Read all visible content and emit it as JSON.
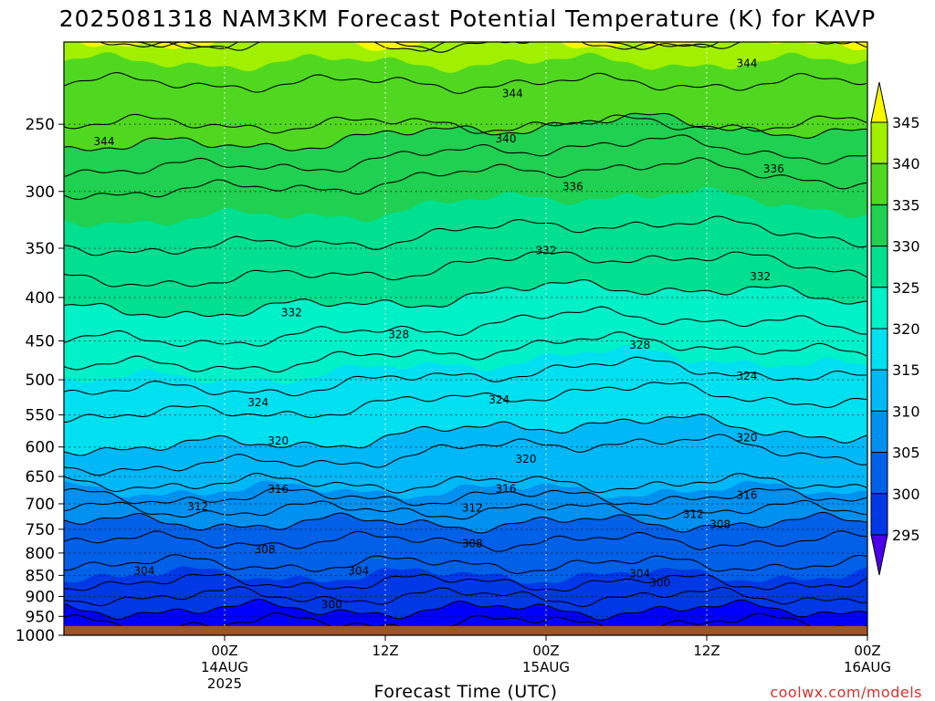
{
  "chart_data": {
    "type": "heatmap",
    "title": "2025081318 NAM3KM Forecast Potential Temperature (K) for KAVP",
    "xlabel": "Forecast Time (UTC)",
    "ylabel": "",
    "y_axis": {
      "scale": "log",
      "inverted": true,
      "range": [
        200,
        1000
      ],
      "ticks": [
        250,
        300,
        350,
        400,
        450,
        500,
        550,
        600,
        650,
        700,
        750,
        800,
        850,
        900,
        950,
        1000
      ],
      "tick_labels": [
        "250",
        "300",
        "350",
        "400",
        "450",
        "500",
        "550",
        "600",
        "650",
        "700",
        "750",
        "800",
        "850",
        "900",
        "950",
        "1000"
      ]
    },
    "x_axis": {
      "range_hours": [
        -6,
        54
      ],
      "ticks": [
        {
          "hours": 6,
          "line1": "00Z",
          "line2": "14AUG",
          "line3": "2025"
        },
        {
          "hours": 18,
          "line1": "12Z",
          "line2": "",
          "line3": ""
        },
        {
          "hours": 30,
          "line1": "00Z",
          "line2": "15AUG",
          "line3": ""
        },
        {
          "hours": 42,
          "line1": "12Z",
          "line2": "",
          "line3": ""
        },
        {
          "hours": 54,
          "line1": "00Z",
          "line2": "16AUG",
          "line3": ""
        }
      ]
    },
    "colorbar": {
      "levels": [
        295,
        300,
        305,
        310,
        315,
        320,
        325,
        330,
        335,
        340,
        345
      ],
      "labels": [
        "345",
        "340",
        "335",
        "330",
        "325",
        "320",
        "315",
        "310",
        "305",
        "300",
        "295"
      ],
      "colors": [
        "#4a00e8",
        "#0000ff",
        "#0038e6",
        "#0060e8",
        "#0090f0",
        "#00b8f8",
        "#00e0f0",
        "#00f0c8",
        "#00e090",
        "#20d050",
        "#50d820",
        "#a0f000",
        "#f8f800"
      ]
    },
    "theta_profile": [
      {
        "p": 200,
        "theta": 346
      },
      {
        "p": 250,
        "theta": 342
      },
      {
        "p": 300,
        "theta": 336
      },
      {
        "p": 350,
        "theta": 334
      },
      {
        "p": 400,
        "theta": 331
      },
      {
        "p": 450,
        "theta": 328
      },
      {
        "p": 500,
        "theta": 325
      },
      {
        "p": 550,
        "theta": 322
      },
      {
        "p": 600,
        "theta": 320
      },
      {
        "p": 650,
        "theta": 317
      },
      {
        "p": 700,
        "theta": 313
      },
      {
        "p": 750,
        "theta": 309
      },
      {
        "p": 800,
        "theta": 307
      },
      {
        "p": 850,
        "theta": 305
      },
      {
        "p": 900,
        "theta": 302
      },
      {
        "p": 950,
        "theta": 299
      }
    ],
    "contour_labels": [
      {
        "text": "344",
        "hours": -3,
        "p": 262
      },
      {
        "text": "344",
        "hours": 27.5,
        "p": 230
      },
      {
        "text": "344",
        "hours": 45,
        "p": 212
      },
      {
        "text": "340",
        "hours": 27,
        "p": 260
      },
      {
        "text": "336",
        "hours": 47,
        "p": 282
      },
      {
        "text": "336",
        "hours": 32,
        "p": 296
      },
      {
        "text": "332",
        "hours": 30,
        "p": 352
      },
      {
        "text": "332",
        "hours": 46,
        "p": 378
      },
      {
        "text": "332",
        "hours": 11,
        "p": 417
      },
      {
        "text": "328",
        "hours": 19,
        "p": 442
      },
      {
        "text": "328",
        "hours": 37,
        "p": 455
      },
      {
        "text": "324",
        "hours": 45,
        "p": 495
      },
      {
        "text": "324",
        "hours": 8.5,
        "p": 532
      },
      {
        "text": "324",
        "hours": 26.5,
        "p": 528
      },
      {
        "text": "320",
        "hours": 10,
        "p": 590
      },
      {
        "text": "320",
        "hours": 45,
        "p": 585
      },
      {
        "text": "320",
        "hours": 28.5,
        "p": 620
      },
      {
        "text": "316",
        "hours": 10,
        "p": 673
      },
      {
        "text": "316",
        "hours": 27,
        "p": 672
      },
      {
        "text": "316",
        "hours": 45,
        "p": 684
      },
      {
        "text": "312",
        "hours": 4,
        "p": 705
      },
      {
        "text": "312",
        "hours": 24.5,
        "p": 708
      },
      {
        "text": "312",
        "hours": 41,
        "p": 720
      },
      {
        "text": "308",
        "hours": 43,
        "p": 740
      },
      {
        "text": "308",
        "hours": 9,
        "p": 792
      },
      {
        "text": "308",
        "hours": 24.5,
        "p": 780
      },
      {
        "text": "304",
        "hours": 0,
        "p": 840
      },
      {
        "text": "304",
        "hours": 16,
        "p": 840
      },
      {
        "text": "304",
        "hours": 37,
        "p": 846
      },
      {
        "text": "300",
        "hours": 38.5,
        "p": 867
      },
      {
        "text": "300",
        "hours": 14,
        "p": 920
      }
    ],
    "terrain_surface_hpa": 975,
    "grid": true,
    "credit": "coolwx.com/models"
  }
}
